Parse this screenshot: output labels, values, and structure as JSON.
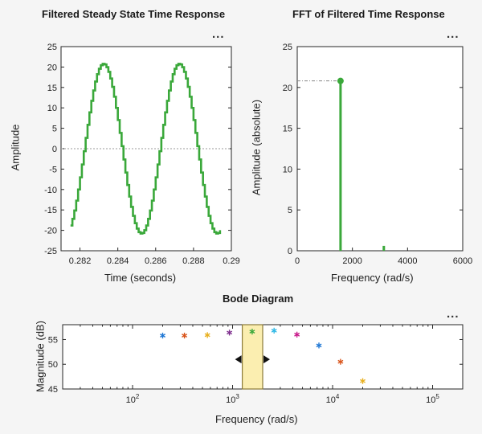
{
  "time_plot": {
    "title": "Filtered Steady State Time Response",
    "xlabel": "Time (seconds)",
    "ylabel": "Amplitude",
    "menu_label": "..."
  },
  "fft_plot": {
    "title": "FFT of Filtered Time Response",
    "xlabel": "Frequency (rad/s)",
    "ylabel": "Amplitude (absolute)",
    "menu_label": "..."
  },
  "bode_plot": {
    "title": "Bode Diagram",
    "xlabel": "Frequency (rad/s)",
    "ylabel": "Magnitude (dB)",
    "menu_label": "..."
  },
  "colors": {
    "signal": "#3aa83a",
    "selection_fill": "#fbeeb0",
    "selection_border": "#8a7a3a",
    "background": "#f5f5f5",
    "axes": "#ffffff"
  },
  "chart_data": [
    {
      "type": "line",
      "title": "Filtered Steady State Time Response",
      "xlabel": "Time (seconds)",
      "ylabel": "Amplitude",
      "xlim": [
        0.281,
        0.29
      ],
      "ylim": [
        -25,
        25
      ],
      "xticks": [
        "0.282",
        "0.284",
        "0.286",
        "0.288",
        "0.29"
      ],
      "xtick_values": [
        0.282,
        0.284,
        0.286,
        0.288,
        0.29
      ],
      "yticks": [
        25,
        20,
        15,
        10,
        5,
        0,
        -5,
        -10,
        -15,
        -20,
        -25
      ],
      "signal": {
        "amplitude": 20.8,
        "period": 0.004,
        "phase": 0.3,
        "x_start": 0.2815,
        "x_end": 0.2894,
        "step": 0.0001
      },
      "reference_line": 0,
      "grid": false
    },
    {
      "type": "bar",
      "title": "FFT of Filtered Time Response",
      "xlabel": "Frequency (rad/s)",
      "ylabel": "Amplitude (absolute)",
      "xlim": [
        0,
        6000
      ],
      "ylim": [
        0,
        25
      ],
      "xticks": [
        0,
        2000,
        4000,
        6000
      ],
      "yticks": [
        0,
        5,
        10,
        15,
        20,
        25
      ],
      "stems": [
        {
          "x": 1570,
          "y": 20.8,
          "marker": true
        },
        {
          "x": 3140,
          "y": 0.6,
          "marker": false
        }
      ],
      "peak_guide": 20.8,
      "grid": false
    },
    {
      "type": "scatter",
      "title": "Bode Diagram",
      "xlabel": "Frequency (rad/s)",
      "ylabel": "Magnitude (dB)",
      "xscale": "log",
      "xlim": [
        20,
        200000
      ],
      "ylim": [
        45,
        58
      ],
      "xticks": [
        {
          "base": "10",
          "exp": "2",
          "value": 100
        },
        {
          "base": "10",
          "exp": "3",
          "value": 1000
        },
        {
          "base": "10",
          "exp": "4",
          "value": 10000
        },
        {
          "base": "10",
          "exp": "5",
          "value": 100000
        }
      ],
      "yticks": [
        45,
        50,
        55
      ],
      "points": [
        {
          "x": 200,
          "y": 55.8,
          "color": "#1f77d4"
        },
        {
          "x": 330,
          "y": 55.8,
          "color": "#d9541a"
        },
        {
          "x": 560,
          "y": 55.9,
          "color": "#e8b020"
        },
        {
          "x": 930,
          "y": 56.4,
          "color": "#7e2f8e"
        },
        {
          "x": 1570,
          "y": 56.6,
          "color": "#3aa83a"
        },
        {
          "x": 2600,
          "y": 56.8,
          "color": "#2fb8e6"
        },
        {
          "x": 4400,
          "y": 56.0,
          "color": "#c8198a"
        },
        {
          "x": 7300,
          "y": 53.8,
          "color": "#1f77d4"
        },
        {
          "x": 12000,
          "y": 50.5,
          "color": "#d9541a"
        },
        {
          "x": 20000,
          "y": 46.6,
          "color": "#e8b020"
        }
      ],
      "selected_band": [
        1250,
        2000
      ],
      "grid": false
    }
  ]
}
